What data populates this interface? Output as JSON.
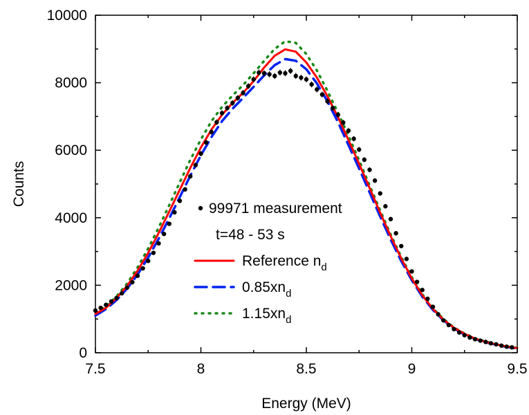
{
  "chart_data": {
    "type": "line",
    "xlabel": "Energy (MeV)",
    "ylabel": "Counts",
    "xlim": [
      7.5,
      9.5
    ],
    "ylim": [
      0,
      10000
    ],
    "x_ticks": [
      7.5,
      8,
      8.5,
      9,
      9.5
    ],
    "x_tick_labels": [
      "7.5",
      "8",
      "8.5",
      "9",
      "9.5"
    ],
    "y_ticks": [
      0,
      2000,
      4000,
      6000,
      8000,
      10000
    ],
    "y_tick_labels": [
      "0",
      "2000",
      "4000",
      "6000",
      "8000",
      "10000"
    ],
    "grid": false,
    "legend_position": "center",
    "legend_lines": [
      {
        "series": "measurement",
        "text": "99971 measurement",
        "sub": ""
      },
      {
        "series": "",
        "text": "t=48 - 53 s",
        "sub": ""
      },
      {
        "series": "reference",
        "text": "Reference n",
        "sub": "d"
      },
      {
        "series": "minus",
        "text": "0.85xn",
        "sub": "d"
      },
      {
        "series": "plus",
        "text": "1.15xn",
        "sub": "d"
      }
    ],
    "series": [
      {
        "id": "measurement",
        "name": "99971 measurement",
        "style": "points-errorbars",
        "color": "#000000",
        "points": [
          [
            7.5,
            1250
          ],
          [
            7.525,
            1330
          ],
          [
            7.55,
            1420
          ],
          [
            7.575,
            1520
          ],
          [
            7.6,
            1620
          ],
          [
            7.625,
            1760
          ],
          [
            7.65,
            1930
          ],
          [
            7.675,
            2090
          ],
          [
            7.7,
            2280
          ],
          [
            7.725,
            2500
          ],
          [
            7.75,
            2720
          ],
          [
            7.775,
            2960
          ],
          [
            7.8,
            3240
          ],
          [
            7.825,
            3520
          ],
          [
            7.85,
            3820
          ],
          [
            7.875,
            4160
          ],
          [
            7.9,
            4500
          ],
          [
            7.925,
            4840
          ],
          [
            7.95,
            5230
          ],
          [
            7.975,
            5560
          ],
          [
            8.0,
            5900
          ],
          [
            8.025,
            6230
          ],
          [
            8.05,
            6540
          ],
          [
            8.075,
            6830
          ],
          [
            8.1,
            7100
          ],
          [
            8.125,
            7250
          ],
          [
            8.15,
            7400
          ],
          [
            8.175,
            7550
          ],
          [
            8.2,
            7700
          ],
          [
            8.225,
            7900
          ],
          [
            8.25,
            8100
          ],
          [
            8.275,
            8300
          ],
          [
            8.3,
            8280
          ],
          [
            8.325,
            8250
          ],
          [
            8.35,
            8200
          ],
          [
            8.375,
            8300
          ],
          [
            8.4,
            8280
          ],
          [
            8.425,
            8350
          ],
          [
            8.45,
            8200
          ],
          [
            8.475,
            8150
          ],
          [
            8.5,
            8100
          ],
          [
            8.525,
            7950
          ],
          [
            8.55,
            7800
          ],
          [
            8.575,
            7650
          ],
          [
            8.6,
            7450
          ],
          [
            8.625,
            7250
          ],
          [
            8.65,
            7050
          ],
          [
            8.675,
            6820
          ],
          [
            8.7,
            6580
          ],
          [
            8.725,
            6340
          ],
          [
            8.75,
            6020
          ],
          [
            8.775,
            5720
          ],
          [
            8.8,
            5420
          ],
          [
            8.825,
            5100
          ],
          [
            8.85,
            4720
          ],
          [
            8.875,
            4340
          ],
          [
            8.9,
            3960
          ],
          [
            8.925,
            3540
          ],
          [
            8.95,
            3160
          ],
          [
            8.975,
            2780
          ],
          [
            9.0,
            2410
          ],
          [
            9.025,
            2100
          ],
          [
            9.05,
            1860
          ],
          [
            9.075,
            1600
          ],
          [
            9.1,
            1360
          ],
          [
            9.125,
            1140
          ],
          [
            9.15,
            960
          ],
          [
            9.175,
            820
          ],
          [
            9.2,
            700
          ],
          [
            9.225,
            600
          ],
          [
            9.25,
            520
          ],
          [
            9.275,
            450
          ],
          [
            9.3,
            400
          ],
          [
            9.325,
            360
          ],
          [
            9.35,
            320
          ],
          [
            9.375,
            280
          ],
          [
            9.4,
            250
          ],
          [
            9.425,
            210
          ],
          [
            9.45,
            180
          ],
          [
            9.475,
            160
          ]
        ]
      },
      {
        "id": "reference",
        "name": "Reference nd",
        "style": "solid",
        "color": "#ff0000",
        "points": [
          [
            7.5,
            1150
          ],
          [
            7.55,
            1330
          ],
          [
            7.6,
            1620
          ],
          [
            7.65,
            1980
          ],
          [
            7.7,
            2430
          ],
          [
            7.75,
            2960
          ],
          [
            7.8,
            3550
          ],
          [
            7.85,
            4180
          ],
          [
            7.9,
            4830
          ],
          [
            7.95,
            5480
          ],
          [
            8.0,
            6080
          ],
          [
            8.05,
            6610
          ],
          [
            8.1,
            7050
          ],
          [
            8.15,
            7400
          ],
          [
            8.2,
            7700
          ],
          [
            8.25,
            8050
          ],
          [
            8.3,
            8450
          ],
          [
            8.35,
            8800
          ],
          [
            8.4,
            8990
          ],
          [
            8.45,
            8920
          ],
          [
            8.5,
            8600
          ],
          [
            8.55,
            8150
          ],
          [
            8.6,
            7600
          ],
          [
            8.65,
            6980
          ],
          [
            8.7,
            6300
          ],
          [
            8.75,
            5600
          ],
          [
            8.8,
            4880
          ],
          [
            8.85,
            4150
          ],
          [
            8.9,
            3450
          ],
          [
            8.95,
            2800
          ],
          [
            9.0,
            2200
          ],
          [
            9.05,
            1700
          ],
          [
            9.1,
            1300
          ],
          [
            9.15,
            980
          ],
          [
            9.2,
            740
          ],
          [
            9.25,
            560
          ],
          [
            9.3,
            420
          ],
          [
            9.35,
            320
          ],
          [
            9.4,
            250
          ],
          [
            9.45,
            180
          ],
          [
            9.5,
            140
          ]
        ]
      },
      {
        "id": "minus",
        "name": "0.85xnd",
        "style": "dashed",
        "color": "#0022ee",
        "points": [
          [
            7.5,
            1100
          ],
          [
            7.55,
            1290
          ],
          [
            7.6,
            1560
          ],
          [
            7.65,
            1900
          ],
          [
            7.7,
            2320
          ],
          [
            7.75,
            2820
          ],
          [
            7.8,
            3380
          ],
          [
            7.85,
            3980
          ],
          [
            7.9,
            4610
          ],
          [
            7.95,
            5250
          ],
          [
            8.0,
            5850
          ],
          [
            8.05,
            6390
          ],
          [
            8.1,
            6860
          ],
          [
            8.15,
            7230
          ],
          [
            8.2,
            7550
          ],
          [
            8.25,
            7880
          ],
          [
            8.3,
            8220
          ],
          [
            8.35,
            8520
          ],
          [
            8.4,
            8700
          ],
          [
            8.45,
            8650
          ],
          [
            8.5,
            8400
          ],
          [
            8.55,
            7980
          ],
          [
            8.6,
            7450
          ],
          [
            8.65,
            6830
          ],
          [
            8.7,
            6150
          ],
          [
            8.75,
            5460
          ],
          [
            8.8,
            4750
          ],
          [
            8.85,
            4040
          ],
          [
            8.9,
            3350
          ],
          [
            8.95,
            2720
          ],
          [
            9.0,
            2150
          ],
          [
            9.05,
            1660
          ],
          [
            9.1,
            1270
          ],
          [
            9.15,
            960
          ],
          [
            9.2,
            720
          ],
          [
            9.25,
            540
          ],
          [
            9.3,
            410
          ],
          [
            9.35,
            310
          ],
          [
            9.4,
            240
          ],
          [
            9.45,
            170
          ],
          [
            9.5,
            130
          ]
        ]
      },
      {
        "id": "plus",
        "name": "1.15xnd",
        "style": "dotted",
        "color": "#1a8a1a",
        "points": [
          [
            7.5,
            1200
          ],
          [
            7.55,
            1370
          ],
          [
            7.6,
            1670
          ],
          [
            7.65,
            2050
          ],
          [
            7.7,
            2530
          ],
          [
            7.75,
            3090
          ],
          [
            7.8,
            3710
          ],
          [
            7.85,
            4370
          ],
          [
            7.9,
            5050
          ],
          [
            7.95,
            5720
          ],
          [
            8.0,
            6320
          ],
          [
            8.05,
            6860
          ],
          [
            8.1,
            7280
          ],
          [
            8.15,
            7620
          ],
          [
            8.2,
            7930
          ],
          [
            8.25,
            8280
          ],
          [
            8.3,
            8650
          ],
          [
            8.35,
            9000
          ],
          [
            8.4,
            9230
          ],
          [
            8.45,
            9180
          ],
          [
            8.5,
            8850
          ],
          [
            8.55,
            8360
          ],
          [
            8.6,
            7760
          ],
          [
            8.65,
            7110
          ],
          [
            8.7,
            6420
          ],
          [
            8.75,
            5700
          ],
          [
            8.8,
            4960
          ],
          [
            8.85,
            4220
          ],
          [
            8.9,
            3500
          ],
          [
            8.95,
            2840
          ],
          [
            9.0,
            2240
          ],
          [
            9.05,
            1730
          ],
          [
            9.1,
            1320
          ],
          [
            9.15,
            1000
          ],
          [
            9.2,
            750
          ],
          [
            9.25,
            570
          ],
          [
            9.3,
            430
          ],
          [
            9.35,
            330
          ],
          [
            9.4,
            255
          ],
          [
            9.45,
            185
          ],
          [
            9.5,
            145
          ]
        ]
      }
    ]
  }
}
